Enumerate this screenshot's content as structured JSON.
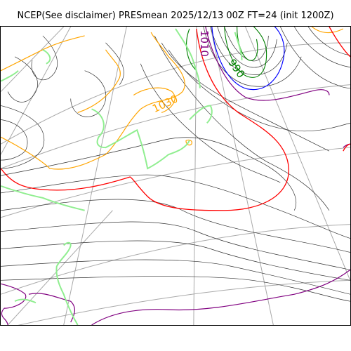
{
  "title": "NCEP(See disclaimer) PRESmean 2025/12/13 00Z FT=24 (init 1200Z)",
  "colors": {
    "isobar": "#333333",
    "contour_1030": "#ffa500",
    "contour_1010": "#800080",
    "contour_990": "#008000",
    "contour_red": "#ff0000",
    "contour_blue": "#0000ff",
    "coast": "#90ee90",
    "grid": "#a9a9a9"
  },
  "contour_labels": [
    {
      "text": "1010",
      "color": "#800080"
    },
    {
      "text": "990",
      "color": "#008000"
    },
    {
      "text": "1030",
      "color": "#ffa500"
    }
  ]
}
